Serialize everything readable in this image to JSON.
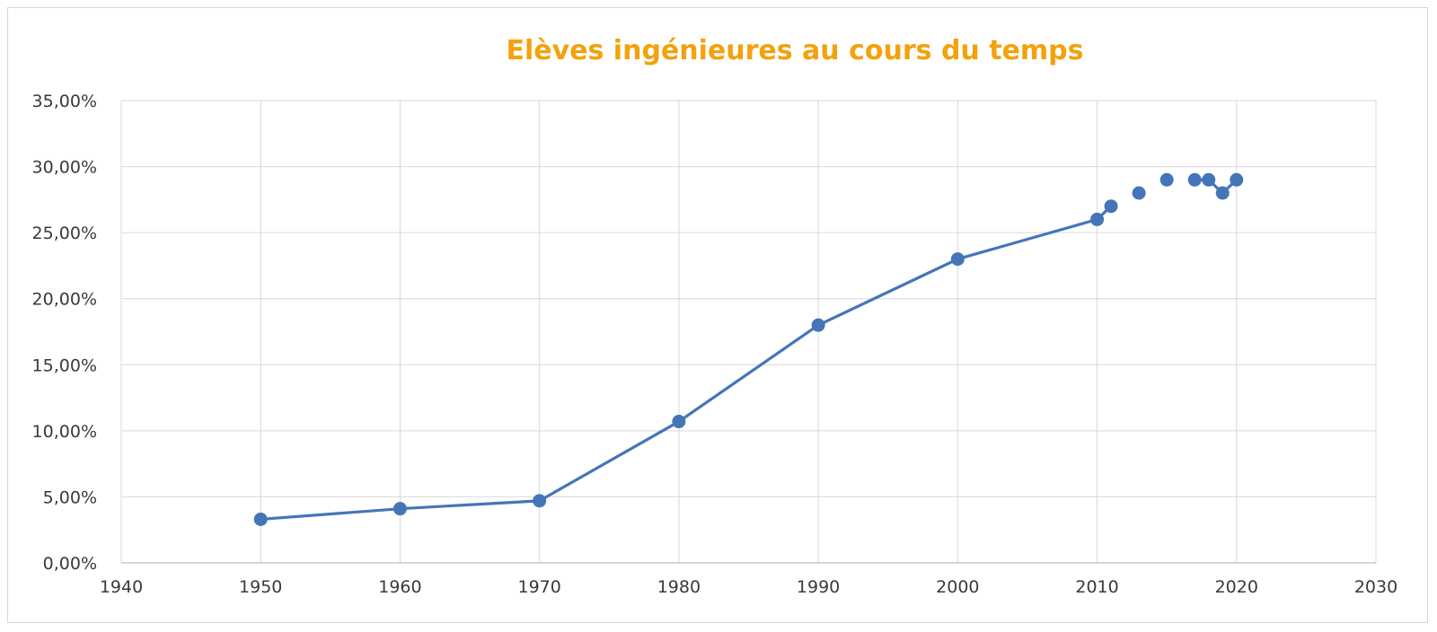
{
  "colors": {
    "title": "#F2A20C",
    "series": "#4575B8",
    "grid": "#D9D9D9",
    "axis": "#BFBFBF",
    "tick_text": "#3A3A3A",
    "frame": "#D6D6D6"
  },
  "chart_data": {
    "type": "line",
    "title": "Elèves ingénieures au cours du temps",
    "xlabel": "",
    "ylabel": "",
    "xlim": [
      1940,
      2030
    ],
    "ylim": [
      0,
      35
    ],
    "grid": true,
    "legend": "none",
    "x_ticks": [
      "1940",
      "1950",
      "1960",
      "1970",
      "1980",
      "1990",
      "2000",
      "2010",
      "2020",
      "2030"
    ],
    "y_ticks": [
      "0,00%",
      "5,00%",
      "10,00%",
      "15,00%",
      "20,00%",
      "25,00%",
      "30,00%",
      "35,00%"
    ],
    "series": [
      {
        "x": [
          1950,
          1960,
          1970,
          1980,
          1990,
          2000,
          2010,
          2011,
          2013,
          2015,
          2017,
          2018,
          2019,
          2020
        ],
        "values": [
          3.3,
          4.1,
          4.7,
          10.7,
          18,
          23,
          26,
          27,
          28,
          29,
          29,
          29,
          28,
          29
        ],
        "connected": [
          true,
          true,
          true,
          true,
          true,
          true,
          true,
          true,
          false,
          false,
          false,
          true,
          true,
          true
        ]
      }
    ]
  }
}
